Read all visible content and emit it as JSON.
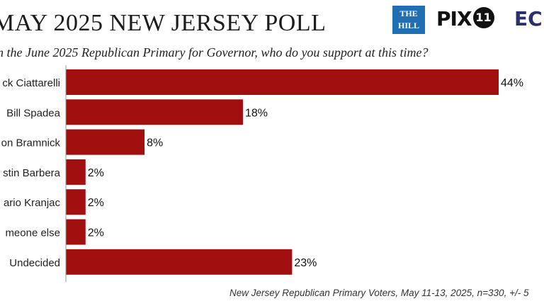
{
  "header": {
    "title": "MAY 2025 NEW JERSEY POLL",
    "question": "n the June 2025 Republican Primary for Governor, who do you support at this time?"
  },
  "logos": {
    "hill_line1": "THE",
    "hill_line2": "HILL",
    "pix_text": "PIX",
    "pix_circle": "11",
    "ec_text": "EC"
  },
  "footnote": "New Jersey Republican Primary Voters, May 11-13, 2025, n=330, +/- 5",
  "colors": {
    "bar": "#a20f0f",
    "axis": "#9a9a9a"
  },
  "chart_data": {
    "type": "bar",
    "orientation": "horizontal",
    "categories": [
      "ck Ciattarelli",
      "Bill Spadea",
      "on Bramnick",
      "stin Barbera",
      "ario Kranjac",
      "meone else",
      "Undecided"
    ],
    "values": [
      44,
      18,
      8,
      2,
      2,
      2,
      23
    ],
    "value_labels": [
      "44%",
      "18%",
      "8%",
      "2%",
      "2%",
      "2%",
      "23%"
    ],
    "unit": "%",
    "xlim": [
      0,
      46
    ],
    "grid": false,
    "legend": "none"
  }
}
